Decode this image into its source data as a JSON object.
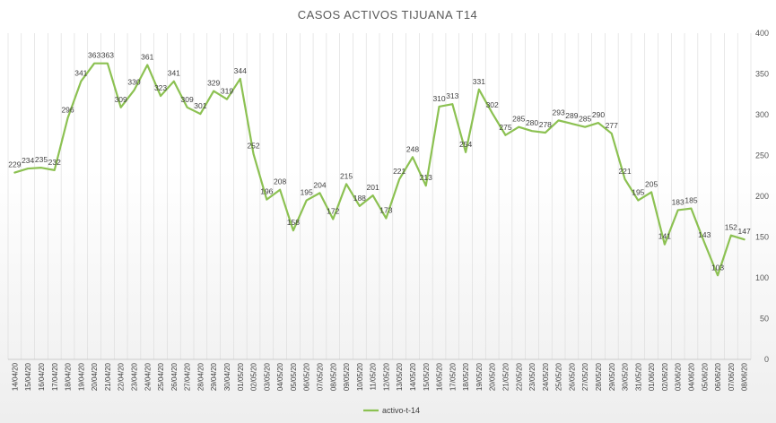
{
  "chart_data": {
    "type": "line",
    "title": "CASOS  ACTIVOS TIJUANA T14",
    "xlabel": "",
    "ylabel": "",
    "ylim": [
      0,
      400
    ],
    "yticks": [
      0,
      50,
      100,
      150,
      200,
      250,
      300,
      350,
      400
    ],
    "grid": "vertical-per-category",
    "legend_position": "bottom-center",
    "categories": [
      "14/04/20",
      "15/04/20",
      "16/04/20",
      "17/04/20",
      "18/04/20",
      "19/04/20",
      "20/04/20",
      "21/04/20",
      "22/04/20",
      "23/04/20",
      "24/04/20",
      "25/04/20",
      "26/04/20",
      "27/04/20",
      "28/04/20",
      "29/04/20",
      "30/04/20",
      "01/05/20",
      "02/05/20",
      "03/05/20",
      "04/05/20",
      "05/05/20",
      "06/05/20",
      "07/05/20",
      "08/05/20",
      "09/05/20",
      "10/05/20",
      "11/05/20",
      "12/05/20",
      "13/05/20",
      "14/05/20",
      "15/05/20",
      "16/05/20",
      "17/05/20",
      "18/05/20",
      "19/05/20",
      "20/05/20",
      "21/05/20",
      "22/05/20",
      "23/05/20",
      "24/05/20",
      "25/05/20",
      "26/05/20",
      "27/05/20",
      "28/05/20",
      "29/05/20",
      "30/05/20",
      "31/05/20",
      "01/06/20",
      "02/06/20",
      "03/06/20",
      "04/06/20",
      "05/06/20",
      "06/06/20",
      "07/06/20",
      "08/06/20"
    ],
    "series": [
      {
        "name": "activo-t-14",
        "color": "#8cc152",
        "values": [
          229,
          234,
          235,
          232,
          296,
          341,
          363,
          363,
          309,
          330,
          361,
          323,
          341,
          309,
          301,
          329,
          319,
          344,
          252,
          196,
          208,
          158,
          195,
          204,
          172,
          215,
          188,
          201,
          173,
          221,
          248,
          213,
          310,
          313,
          254,
          331,
          302,
          275,
          285,
          280,
          278,
          293,
          289,
          285,
          290,
          277,
          221,
          195,
          205,
          141,
          183,
          185,
          143,
          103,
          152,
          147
        ]
      }
    ]
  }
}
